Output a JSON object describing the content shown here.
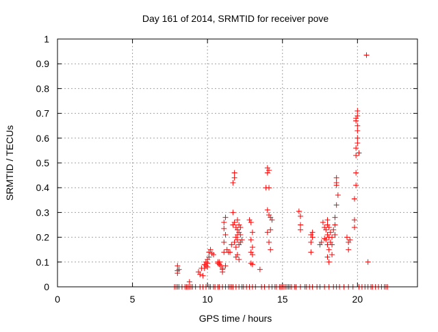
{
  "chart_data": {
    "type": "scatter",
    "title": "Day 161 of 2014, SRMTID for receiver pove",
    "xlabel": "GPS time / hours",
    "ylabel": "SRMTID / TECUs",
    "xlim": [
      0,
      24
    ],
    "ylim": [
      0,
      1
    ],
    "xticks": [
      0,
      5,
      10,
      15,
      20
    ],
    "yticks": [
      0,
      0.1,
      0.2,
      0.3,
      0.4,
      0.5,
      0.6,
      0.7,
      0.8,
      0.9,
      1
    ],
    "ytick_labels": [
      "0",
      "0.1",
      "0.2",
      "0.3",
      "0.4",
      "0.5",
      "0.6",
      "0.7",
      "0.8",
      "0.9",
      "1"
    ],
    "grid": true,
    "marker": "plus",
    "color": "#ff0000",
    "series": [
      {
        "x": [
          8.0,
          8.0,
          8.0,
          8.1,
          8.8,
          9.4,
          9.5,
          9.6,
          9.7,
          9.8,
          9.8,
          9.9,
          9.9,
          10.0,
          10.0,
          10.0,
          10.1,
          10.1,
          10.2,
          10.3,
          10.4,
          10.7,
          10.7,
          10.8,
          10.8,
          10.9,
          11.0,
          11.0,
          11.0,
          11.1,
          11.1,
          11.1,
          11.1,
          11.2,
          11.2,
          11.2,
          11.3,
          11.4,
          11.5,
          11.6,
          11.7,
          11.7,
          11.7,
          11.8,
          11.8,
          11.8,
          11.8,
          11.9,
          11.9,
          11.9,
          11.9,
          12.0,
          12.0,
          12.0,
          12.0,
          12.0,
          12.1,
          12.1,
          12.1,
          12.1,
          12.2,
          12.2,
          12.2,
          12.3,
          12.8,
          12.9,
          12.9,
          12.9,
          12.9,
          13.0,
          13.0,
          13.0,
          13.0,
          13.5,
          13.9,
          14.0,
          14.0,
          14.0,
          14.0,
          14.1,
          14.1,
          14.1,
          14.1,
          14.2,
          14.2,
          14.2,
          14.3,
          16.1,
          16.2,
          16.2,
          16.2,
          16.9,
          16.9,
          16.9,
          17.0,
          17.0,
          17.5,
          17.6,
          17.7,
          17.8,
          17.8,
          17.9,
          17.9,
          18.0,
          18.0,
          18.0,
          18.0,
          18.0,
          18.1,
          18.1,
          18.1,
          18.1,
          18.2,
          18.2,
          18.3,
          18.3,
          18.3,
          18.4,
          18.5,
          18.5,
          18.5,
          18.6,
          18.6,
          18.6,
          18.6,
          18.7,
          19.3,
          19.4,
          19.4,
          19.5,
          19.8,
          19.8,
          19.8,
          19.9,
          19.9,
          19.9,
          19.9,
          19.9,
          19.9,
          20.0,
          20.0,
          20.0,
          20.0,
          20.0,
          20.0,
          20.1,
          20.6,
          20.7
        ],
        "y": [
          0.085,
          0.065,
          0.055,
          0.07,
          0.02,
          0.06,
          0.05,
          0.075,
          0.045,
          0.09,
          0.075,
          0.1,
          0.085,
          0.11,
          0.095,
          0.08,
          0.14,
          0.12,
          0.15,
          0.135,
          0.13,
          0.095,
          0.1,
          0.09,
          0.1,
          0.085,
          0.07,
          0.075,
          0.06,
          0.26,
          0.235,
          0.18,
          0.14,
          0.28,
          0.21,
          0.085,
          0.15,
          0.14,
          0.14,
          0.17,
          0.3,
          0.25,
          0.42,
          0.46,
          0.44,
          0.26,
          0.18,
          0.24,
          0.2,
          0.16,
          0.12,
          0.27,
          0.23,
          0.21,
          0.19,
          0.13,
          0.25,
          0.22,
          0.17,
          0.11,
          0.24,
          0.21,
          0.18,
          0.19,
          0.27,
          0.26,
          0.19,
          0.14,
          0.095,
          0.22,
          0.16,
          0.13,
          0.09,
          0.07,
          0.4,
          0.48,
          0.46,
          0.31,
          0.22,
          0.47,
          0.4,
          0.29,
          0.18,
          0.28,
          0.23,
          0.15,
          0.27,
          0.305,
          0.285,
          0.25,
          0.23,
          0.21,
          0.18,
          0.14,
          0.22,
          0.2,
          0.17,
          0.18,
          0.26,
          0.24,
          0.195,
          0.23,
          0.19,
          0.27,
          0.25,
          0.21,
          0.17,
          0.12,
          0.24,
          0.2,
          0.15,
          0.1,
          0.22,
          0.18,
          0.2,
          0.17,
          0.13,
          0.23,
          0.28,
          0.25,
          0.21,
          0.44,
          0.42,
          0.41,
          0.33,
          0.37,
          0.2,
          0.18,
          0.15,
          0.19,
          0.355,
          0.27,
          0.24,
          0.46,
          0.56,
          0.68,
          0.67,
          0.53,
          0.41,
          0.71,
          0.69,
          0.65,
          0.63,
          0.6,
          0.58,
          0.54,
          0.935,
          0.1
        ]
      },
      {
        "x": [
          7.8,
          7.9,
          8.0,
          8.1,
          8.3,
          8.5,
          8.6,
          8.7,
          8.8,
          8.9,
          9.0,
          9.2,
          9.5,
          9.7,
          9.9,
          10.1,
          10.2,
          10.4,
          10.5,
          10.7,
          10.8,
          11.0,
          11.2,
          11.4,
          11.5,
          11.6,
          11.7,
          11.9,
          12.1,
          12.3,
          12.4,
          12.6,
          12.8,
          13.0,
          13.2,
          13.6,
          13.8,
          14.1,
          14.3,
          14.5,
          14.6,
          14.8,
          14.9,
          15.0,
          15.1,
          15.2,
          15.3,
          15.4,
          15.5,
          15.6,
          15.8,
          15.9,
          16.2,
          16.5,
          16.6,
          16.8,
          17.0,
          17.3,
          17.5,
          17.8,
          18.1,
          18.4,
          18.6,
          18.8,
          19.1,
          19.4,
          19.7,
          20.1,
          20.3,
          20.5,
          20.7,
          20.9,
          21.0,
          21.2,
          21.4,
          21.6,
          21.8,
          21.9,
          22.0
        ],
        "y": [
          0,
          0,
          0,
          0,
          0,
          0,
          0,
          0,
          0,
          0,
          0,
          0,
          0,
          0,
          0,
          0,
          0,
          0,
          0,
          0,
          0,
          0,
          0,
          0,
          0,
          0,
          0,
          0,
          0,
          0,
          0,
          0,
          0,
          0,
          0,
          0,
          0,
          0,
          0,
          0,
          0,
          0,
          0,
          0,
          0,
          0,
          0,
          0,
          0,
          0,
          0,
          0,
          0,
          0,
          0,
          0,
          0,
          0,
          0,
          0,
          0,
          0,
          0,
          0,
          0,
          0,
          0,
          0,
          0,
          0,
          0,
          0,
          0,
          0,
          0,
          0,
          0,
          0,
          0
        ]
      }
    ]
  }
}
